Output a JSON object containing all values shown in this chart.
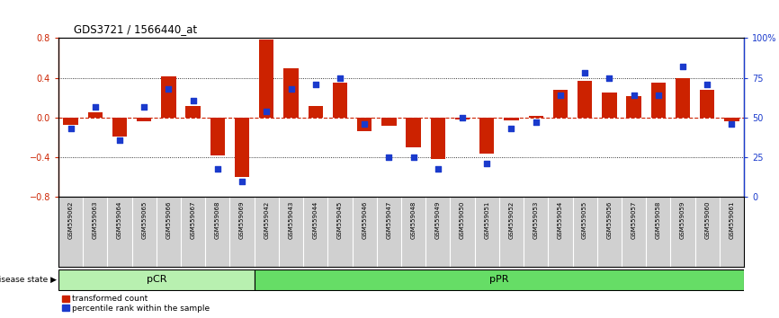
{
  "title": "GDS3721 / 1566440_at",
  "samples": [
    "GSM559062",
    "GSM559063",
    "GSM559064",
    "GSM559065",
    "GSM559066",
    "GSM559067",
    "GSM559068",
    "GSM559069",
    "GSM559042",
    "GSM559043",
    "GSM559044",
    "GSM559045",
    "GSM559046",
    "GSM559047",
    "GSM559048",
    "GSM559049",
    "GSM559050",
    "GSM559051",
    "GSM559052",
    "GSM559053",
    "GSM559054",
    "GSM559055",
    "GSM559056",
    "GSM559057",
    "GSM559058",
    "GSM559059",
    "GSM559060",
    "GSM559061"
  ],
  "transformed_count": [
    -0.07,
    0.05,
    -0.19,
    -0.04,
    0.42,
    0.12,
    -0.38,
    -0.6,
    0.79,
    0.5,
    0.12,
    0.35,
    -0.14,
    -0.08,
    -0.3,
    -0.42,
    -0.02,
    -0.36,
    -0.03,
    0.02,
    0.28,
    0.37,
    0.25,
    0.22,
    0.35,
    0.4,
    0.28,
    -0.04
  ],
  "percentile_rank": [
    43,
    57,
    36,
    57,
    68,
    61,
    18,
    10,
    54,
    68,
    71,
    75,
    46,
    25,
    25,
    18,
    50,
    21,
    43,
    47,
    64,
    78,
    75,
    64,
    64,
    82,
    71,
    46
  ],
  "pcr_count": 8,
  "ppr_count": 20,
  "ylim_left": [
    -0.8,
    0.8
  ],
  "ylim_right": [
    0,
    100
  ],
  "yticks_left": [
    -0.8,
    -0.4,
    0,
    0.4,
    0.8
  ],
  "yticks_right": [
    0,
    25,
    50,
    75,
    100
  ],
  "bar_color": "#cc2200",
  "dot_color": "#1a3acc",
  "pcr_color": "#b8f0b0",
  "ppr_color": "#66dd66",
  "zero_line_color": "#cc2200",
  "tick_bg_color": "#d0d0d0",
  "legend_dot_label": "percentile rank within the sample",
  "legend_bar_label": "transformed count",
  "disease_state_label": "disease state",
  "pcr_label": "pCR",
  "ppr_label": "pPR"
}
